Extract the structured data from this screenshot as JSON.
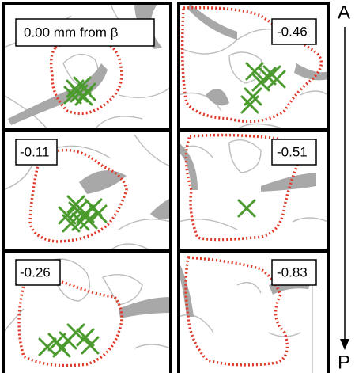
{
  "panels": [
    {
      "label": "0.00 mm from β"
    },
    {
      "label": "-0.46"
    },
    {
      "label": "-0.11"
    },
    {
      "label": "-0.51"
    },
    {
      "label": "-0.26"
    },
    {
      "label": "-0.83"
    }
  ],
  "axis": {
    "top": "A",
    "bottom": "P"
  }
}
